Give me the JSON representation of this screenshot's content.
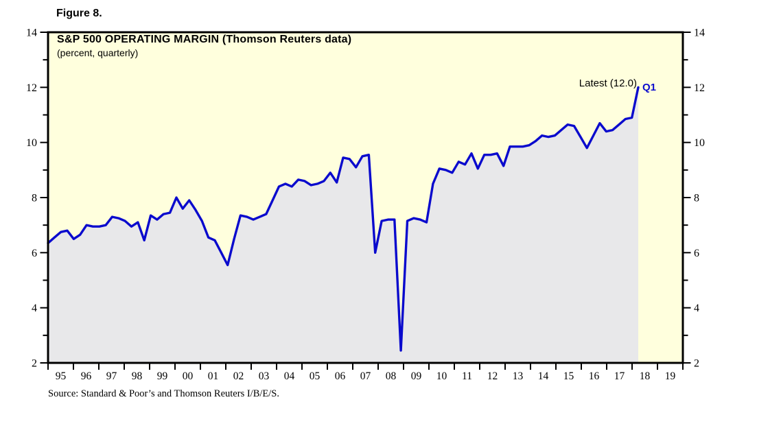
{
  "figure_label": "Figure 8.",
  "source_note": "Source: Standard & Poor’s and Thomson Reuters I/B/E/S.",
  "colors": {
    "page_bg": "#ffffff",
    "plot_bg": "#ffffdd",
    "area_fill": "#e8e8ea",
    "line": "#0a0acd",
    "frame": "#000000",
    "annotation_blue": "#0a0acd",
    "text": "#000000"
  },
  "chart_data": {
    "type": "area",
    "title": "S&P 500 OPERATING MARGIN (Thomson Reuters data)",
    "subtitle": "(percent, quarterly)",
    "ylabel": "percent",
    "ylim": [
      2,
      14
    ],
    "y_major_ticks": [
      2,
      4,
      6,
      8,
      10,
      12,
      14
    ],
    "y_minor_ticks": [
      3,
      5,
      7,
      9,
      11,
      13
    ],
    "grid": false,
    "legend_position": "none",
    "frequency": "quarterly",
    "start_quarter": "1995Q1",
    "end_quarter": "2018Q1",
    "x_year_labels": [
      "95",
      "96",
      "97",
      "98",
      "99",
      "00",
      "01",
      "02",
      "03",
      "04",
      "05",
      "06",
      "07",
      "08",
      "09",
      "10",
      "11",
      "12",
      "13",
      "14",
      "15",
      "16",
      "17",
      "18",
      "19"
    ],
    "annotations": {
      "latest_label": "Latest (12.0)",
      "latest_value": 12.0,
      "last_point_label": "Q1"
    },
    "series": [
      {
        "name": "S&P 500 operating margin (percent, quarterly)",
        "values": [
          6.35,
          6.55,
          6.75,
          6.8,
          6.5,
          6.65,
          7.0,
          6.95,
          6.95,
          7.0,
          7.3,
          7.25,
          7.15,
          6.95,
          7.1,
          6.45,
          7.35,
          7.2,
          7.4,
          7.45,
          8.0,
          7.6,
          7.9,
          7.55,
          7.15,
          6.55,
          6.45,
          6.0,
          5.55,
          6.5,
          7.35,
          7.3,
          7.2,
          7.3,
          7.4,
          7.9,
          8.4,
          8.5,
          8.4,
          8.65,
          8.6,
          8.45,
          8.5,
          8.6,
          8.9,
          8.55,
          9.45,
          9.4,
          9.1,
          9.5,
          9.55,
          6.0,
          7.15,
          7.2,
          7.2,
          2.45,
          7.15,
          7.25,
          7.2,
          7.1,
          8.5,
          9.05,
          9.0,
          8.9,
          9.3,
          9.2,
          9.6,
          9.05,
          9.55,
          9.55,
          9.6,
          9.15,
          9.85,
          9.85,
          9.85,
          9.9,
          10.05,
          10.25,
          10.2,
          10.25,
          10.45,
          10.65,
          10.6,
          10.2,
          9.8,
          10.25,
          10.7,
          10.4,
          10.45,
          10.65,
          10.85,
          10.9,
          12.0
        ]
      }
    ]
  }
}
